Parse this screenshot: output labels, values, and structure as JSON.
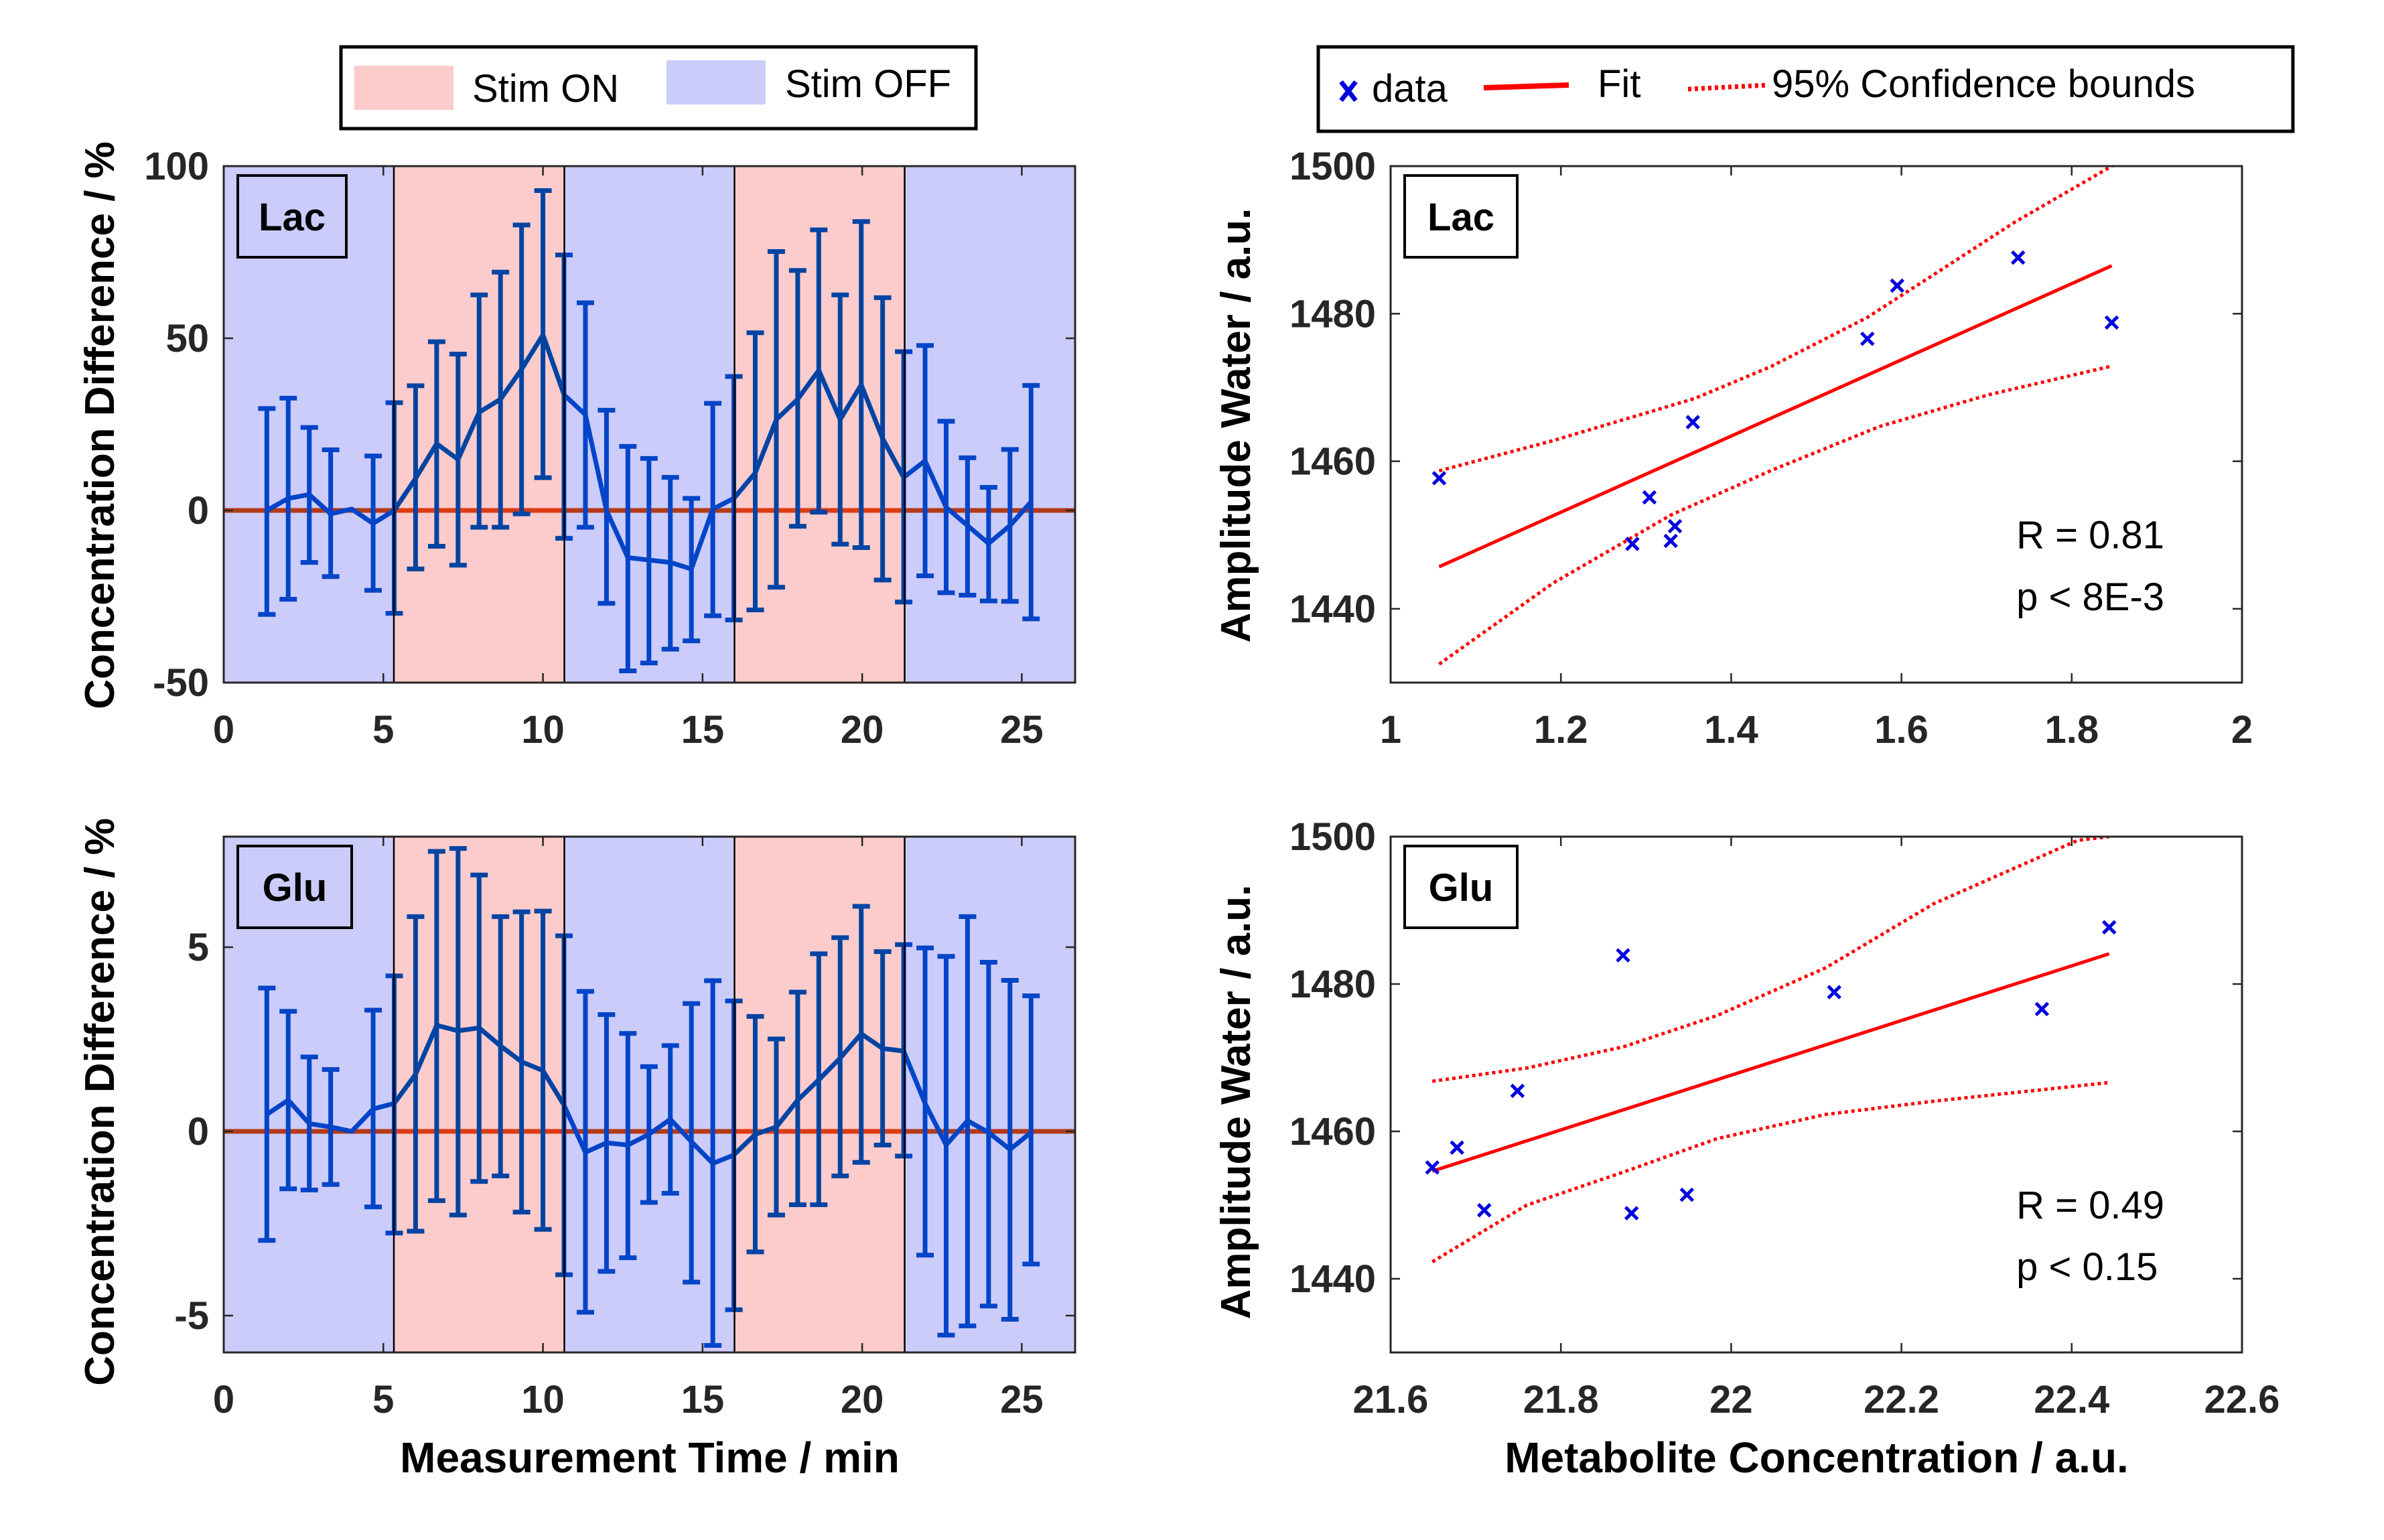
{
  "colors": {
    "stim_on": "#FCCCCC",
    "stim_off": "#CCCCFA",
    "series_line": "#0055CC",
    "zero_line": "#E04A18",
    "scatter_marker": "#0000E0",
    "fit_line": "#FF0000",
    "axis": "#262626"
  },
  "legends": {
    "left": {
      "entries": [
        {
          "label": "Stim ON",
          "swatch": "stim_on"
        },
        {
          "label": "Stim OFF",
          "swatch": "stim_off"
        }
      ]
    },
    "right": {
      "entries": [
        {
          "label": "data",
          "symbol": "x"
        },
        {
          "label": "Fit",
          "symbol": "solid-line"
        },
        {
          "label": "95% Confidence bounds",
          "symbol": "dotted-line"
        }
      ]
    }
  },
  "chart_data": [
    {
      "id": "lac-timeseries",
      "type": "line",
      "panel_label": "Lac",
      "title": "",
      "xlabel": "",
      "ylabel": "Concentration Difference / %",
      "xlim": [
        0,
        26.67
      ],
      "ylim": [
        -50,
        100
      ],
      "xticks": [
        0,
        5,
        10,
        15,
        20,
        25
      ],
      "yticks": [
        -50,
        0,
        50,
        100
      ],
      "grid": false,
      "stim_blocks": [
        {
          "state": "off",
          "start": 0,
          "end": 5.33
        },
        {
          "state": "on",
          "start": 5.33,
          "end": 10.67
        },
        {
          "state": "off",
          "start": 10.67,
          "end": 16.0
        },
        {
          "state": "on",
          "start": 16.0,
          "end": 21.33
        },
        {
          "state": "off",
          "start": 21.33,
          "end": 26.67
        }
      ],
      "reference_line": 0,
      "x": [
        1.35,
        2.02,
        2.68,
        3.35,
        4.01,
        4.68,
        5.34,
        6.01,
        6.67,
        7.34,
        8.0,
        8.67,
        9.33,
        10.0,
        10.66,
        11.33,
        11.99,
        12.66,
        13.32,
        13.99,
        14.65,
        15.32,
        15.98,
        16.65,
        17.31,
        17.98,
        18.64,
        19.31,
        19.97,
        20.64,
        21.3,
        21.97,
        22.63,
        23.3,
        23.96,
        24.63,
        25.29
      ],
      "series": [
        {
          "name": "Lac",
          "values": [
            0,
            3.5,
            4.6,
            -1,
            0.4,
            -3.8,
            0,
            9.3,
            19.4,
            14.8,
            28.5,
            32.3,
            41,
            51,
            33.6,
            27.8,
            0,
            -13.7,
            -14.4,
            -15.1,
            -17,
            0.4,
            3.5,
            10.9,
            26.4,
            32.3,
            40.7,
            26.4,
            36.5,
            20.9,
            9.6,
            14.4,
            0.9,
            -4.4,
            -9.6,
            -4.4,
            2.5
          ],
          "err_upper": [
            29.6,
            32.6,
            24.1,
            17.6,
            null,
            15.8,
            31.3,
            36.2,
            49.0,
            45.4,
            62.6,
            69.2,
            82.9,
            92.9,
            74.2,
            60.3,
            29.1,
            18.6,
            15.1,
            9.6,
            3.5,
            31.1,
            38.9,
            51.6,
            75.2,
            69.7,
            81.5,
            62.6,
            83.9,
            61.8,
            46.1,
            47.9,
            25.9,
            15.3,
            6.7,
            17.7,
            36.3
          ],
          "err_lower": [
            -30.2,
            -25.8,
            -15.1,
            -19.2,
            null,
            -23.2,
            -29.9,
            -17.0,
            -10.4,
            -15.9,
            -4.9,
            -4.9,
            -1.0,
            9.5,
            -8.1,
            -4.9,
            -27.0,
            -46.6,
            -44.3,
            -40.3,
            -37.9,
            -30.6,
            -31.8,
            -28.9,
            -22.3,
            -4.6,
            -0.5,
            -9.8,
            -10.8,
            -20.2,
            -26.6,
            -19.0,
            -23.9,
            -24.6,
            -26.3,
            -26.4,
            -31.5
          ]
        }
      ]
    },
    {
      "id": "glu-timeseries",
      "type": "line",
      "panel_label": "Glu",
      "title": "",
      "xlabel": "Measurement Time / min",
      "ylabel": "Concentration Difference / %",
      "xlim": [
        0,
        26.67
      ],
      "ylim": [
        -6,
        8
      ],
      "xticks": [
        0,
        5,
        10,
        15,
        20,
        25
      ],
      "yticks": [
        -5,
        0,
        5
      ],
      "grid": false,
      "stim_blocks": [
        {
          "state": "off",
          "start": 0,
          "end": 5.33
        },
        {
          "state": "on",
          "start": 5.33,
          "end": 10.67
        },
        {
          "state": "off",
          "start": 10.67,
          "end": 16.0
        },
        {
          "state": "on",
          "start": 16.0,
          "end": 21.33
        },
        {
          "state": "off",
          "start": 21.33,
          "end": 26.67
        }
      ],
      "reference_line": 0,
      "x": [
        1.35,
        2.02,
        2.68,
        3.35,
        4.01,
        4.68,
        5.34,
        6.01,
        6.67,
        7.34,
        8.0,
        8.67,
        9.33,
        10.0,
        10.66,
        11.33,
        11.99,
        12.66,
        13.32,
        13.99,
        14.65,
        15.32,
        15.98,
        16.65,
        17.31,
        17.98,
        18.64,
        19.31,
        19.97,
        20.64,
        21.3,
        21.97,
        22.63,
        23.3,
        23.96,
        24.63,
        25.29
      ],
      "series": [
        {
          "name": "Glu",
          "values": [
            0.46,
            0.85,
            0.21,
            0.12,
            0,
            0.61,
            0.76,
            1.55,
            2.88,
            2.73,
            2.81,
            2.32,
            1.89,
            1.65,
            0.71,
            -0.57,
            -0.31,
            -0.37,
            -0.08,
            0.33,
            -0.28,
            -0.87,
            -0.64,
            -0.08,
            0.12,
            0.85,
            1.4,
            1.99,
            2.65,
            2.25,
            2.18,
            0.76,
            -0.37,
            0.29,
            -0.03,
            -0.49,
            -0.03
          ],
          "err_upper": [
            3.89,
            3.26,
            2.02,
            1.68,
            null,
            3.29,
            4.22,
            5.83,
            7.6,
            7.68,
            6.96,
            5.83,
            5.96,
            5.98,
            5.31,
            3.8,
            3.17,
            2.66,
            1.76,
            2.33,
            3.47,
            4.09,
            3.54,
            3.12,
            2.51,
            3.78,
            4.82,
            5.26,
            6.11,
            4.88,
            5.07,
            4.98,
            4.75,
            5.83,
            4.59,
            4.1,
            3.68
          ],
          "err_lower": [
            -2.96,
            -1.56,
            -1.59,
            -1.44,
            null,
            -2.05,
            -2.76,
            -2.71,
            -1.88,
            -2.27,
            -1.36,
            -1.21,
            -2.19,
            -2.66,
            -3.89,
            -4.91,
            -3.8,
            -3.43,
            -1.93,
            -1.68,
            -4.09,
            -5.81,
            -4.84,
            -3.27,
            -2.27,
            -1.99,
            -1.99,
            -1.21,
            -0.84,
            -0.37,
            -0.67,
            -3.36,
            -5.53,
            -5.28,
            -4.74,
            -5.1,
            -3.6
          ]
        }
      ]
    },
    {
      "id": "lac-correlation",
      "type": "scatter",
      "panel_label": "Lac",
      "title": "",
      "xlabel": "",
      "ylabel": "Amplitude Water / a.u.",
      "xlim": [
        1,
        2
      ],
      "ylim": [
        1430,
        1500
      ],
      "xticks": [
        1,
        1.2,
        1.4,
        1.6,
        1.8,
        2
      ],
      "yticks": [
        1440,
        1460,
        1480,
        1500
      ],
      "grid": false,
      "annotations": [
        "R = 0.81",
        "p < 8E-3"
      ],
      "series": [
        {
          "name": "data",
          "x": [
            1.057,
            1.284,
            1.304,
            1.329,
            1.334,
            1.355,
            1.56,
            1.595,
            1.737,
            1.847
          ],
          "y": [
            1457.7,
            1448.8,
            1455.1,
            1449.2,
            1451.2,
            1465.3,
            1476.6,
            1483.8,
            1487.6,
            1478.8
          ]
        },
        {
          "name": "Fit",
          "x": [
            1.057,
            1.847
          ],
          "y": [
            1445.7,
            1486.5
          ]
        },
        {
          "name": "95% Confidence bounds (upper)",
          "x": [
            1.057,
            1.191,
            1.357,
            1.446,
            1.56,
            1.638,
            1.733,
            1.847
          ],
          "y": [
            1458.7,
            1462.8,
            1468.5,
            1472.8,
            1479.5,
            1485.3,
            1492.4,
            1500.0
          ]
        },
        {
          "name": "95% Confidence bounds (lower)",
          "x": [
            1.057,
            1.191,
            1.329,
            1.446,
            1.574,
            1.702,
            1.847
          ],
          "y": [
            1432.5,
            1443.5,
            1452.7,
            1458.7,
            1464.7,
            1469.0,
            1472.9
          ]
        }
      ]
    },
    {
      "id": "glu-correlation",
      "type": "scatter",
      "panel_label": "Glu",
      "title": "",
      "xlabel": "Metabolite Concentration / a.u.",
      "ylabel": "Amplitude Water / a.u.",
      "xlim": [
        21.6,
        22.6
      ],
      "ylim": [
        1430,
        1500
      ],
      "xticks": [
        21.6,
        21.8,
        22,
        22.2,
        22.4,
        22.6
      ],
      "yticks": [
        1440,
        1460,
        1480,
        1500
      ],
      "grid": false,
      "annotations": [
        "R = 0.49",
        "p < 0.15"
      ],
      "series": [
        {
          "name": "data",
          "x": [
            21.649,
            21.678,
            21.71,
            21.749,
            21.873,
            21.883,
            21.948,
            22.121,
            22.365,
            22.444
          ],
          "y": [
            1455.1,
            1457.8,
            1449.3,
            1465.5,
            1483.9,
            1448.9,
            1451.4,
            1478.9,
            1476.6,
            1487.7
          ]
        },
        {
          "name": "Fit",
          "x": [
            21.649,
            22.444
          ],
          "y": [
            1454.6,
            1484.1
          ]
        },
        {
          "name": "95% Confidence bounds (upper)",
          "x": [
            21.649,
            21.76,
            21.874,
            21.983,
            22.111,
            22.238,
            22.407,
            22.444
          ],
          "y": [
            1466.8,
            1468.6,
            1471.5,
            1475.7,
            1482.2,
            1490.9,
            1499.5,
            1500.0
          ]
        },
        {
          "name": "95% Confidence bounds (lower)",
          "x": [
            21.649,
            21.76,
            21.874,
            21.983,
            22.111,
            22.238,
            22.442
          ],
          "y": [
            1442.3,
            1450.0,
            1454.5,
            1459.0,
            1462.3,
            1464.1,
            1466.6
          ]
        }
      ]
    }
  ]
}
